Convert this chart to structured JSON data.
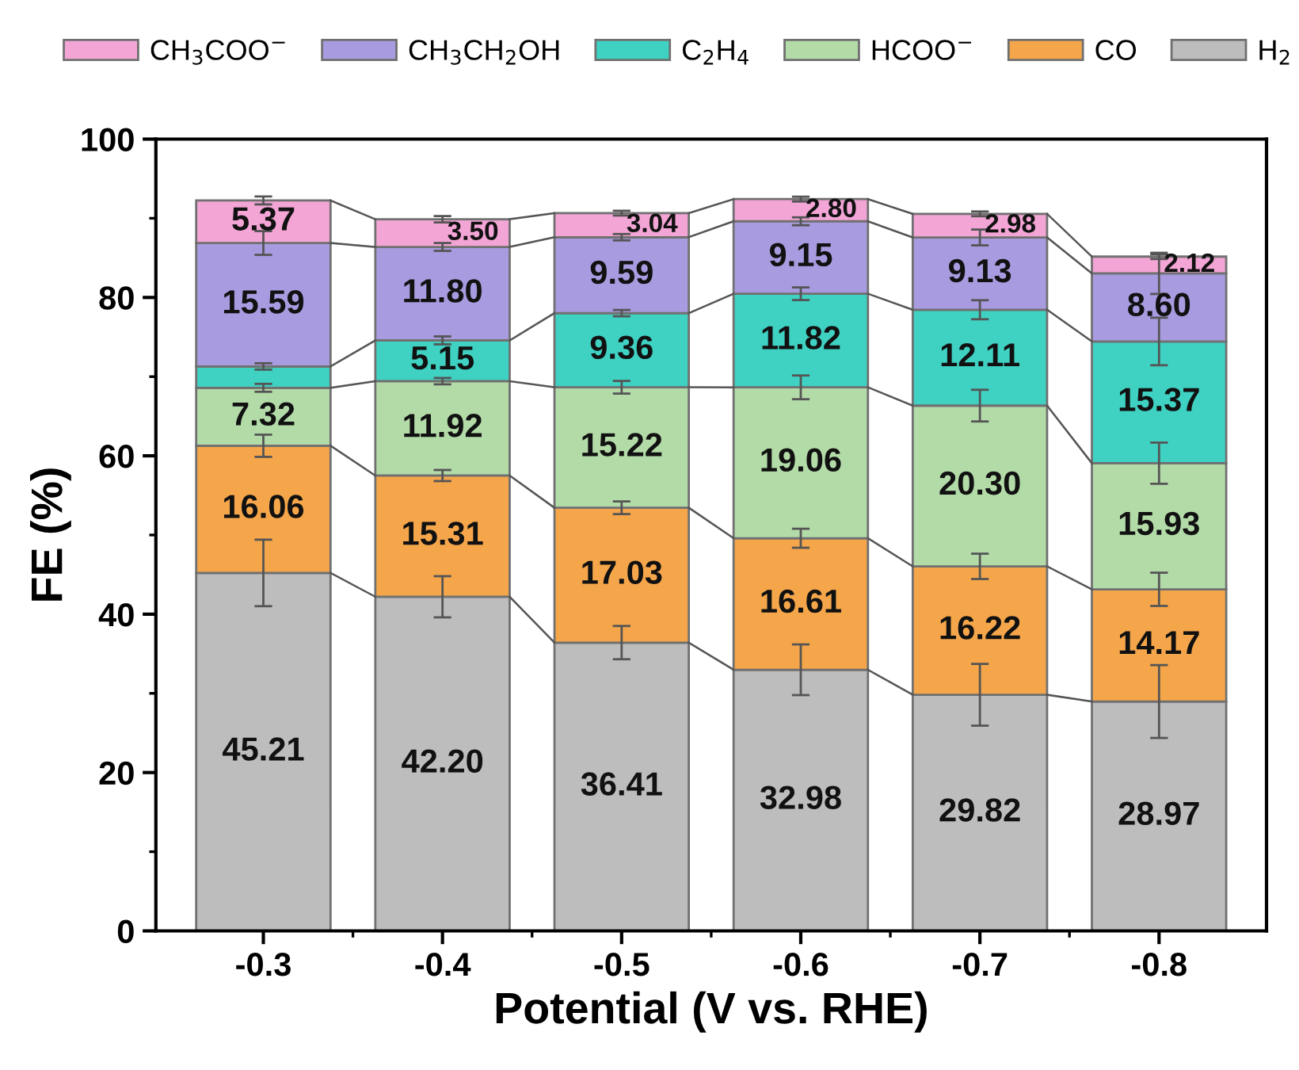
{
  "chart_data": {
    "type": "bar",
    "stacked": true,
    "xlabel": "Potential (V vs. RHE)",
    "ylabel": "FE (%)",
    "categories": [
      "-0.3",
      "-0.4",
      "-0.5",
      "-0.6",
      "-0.7",
      "-0.8"
    ],
    "ylim": [
      0,
      100
    ],
    "yticks": [
      0,
      20,
      40,
      60,
      80,
      100
    ],
    "grid": false,
    "legend": "top",
    "series": [
      {
        "name": "H$_{2}$",
        "color": "#bdbdbd",
        "values": [
          45.21,
          42.2,
          36.41,
          32.98,
          29.82,
          28.97
        ],
        "errors": [
          4.2,
          2.6,
          2.1,
          3.2,
          3.9,
          4.6
        ],
        "value_labels": [
          "45.21",
          "42.20",
          "36.41",
          "32.98",
          "29.82",
          "28.97"
        ]
      },
      {
        "name": "CO",
        "color": "#f5a64a",
        "values": [
          16.06,
          15.31,
          17.03,
          16.61,
          16.22,
          14.17
        ],
        "errors": [
          1.4,
          0.7,
          0.8,
          1.2,
          1.6,
          2.1
        ],
        "value_labels": [
          "16.06",
          "15.31",
          "17.03",
          "16.61",
          "16.22",
          "14.17"
        ]
      },
      {
        "name": "HCOO$^{−}$",
        "color": "#b3dba8",
        "values": [
          7.32,
          11.92,
          15.22,
          19.06,
          20.3,
          15.93
        ],
        "errors": [
          0.5,
          0.4,
          0.8,
          1.5,
          2.0,
          2.6
        ],
        "value_labels": [
          "7.32",
          "11.92",
          "15.22",
          "19.06",
          "20.30",
          "15.93"
        ]
      },
      {
        "name": "C$_{2}$H$_{4}$",
        "color": "#3fd1c2",
        "values": [
          2.7,
          5.15,
          9.36,
          11.82,
          12.11,
          15.37
        ],
        "errors": [
          0.4,
          0.5,
          0.4,
          0.8,
          1.2,
          3.0
        ],
        "value_labels": [
          null,
          "5.15",
          "9.36",
          "11.82",
          "12.11",
          "15.37"
        ]
      },
      {
        "name": "CH$_{3}$CH$_{2}$OH",
        "color": "#a99be0",
        "values": [
          15.59,
          11.8,
          9.59,
          9.15,
          9.13,
          8.6
        ],
        "errors": [
          1.5,
          0.5,
          0.4,
          0.5,
          1.0,
          2.6
        ],
        "value_labels": [
          "15.59",
          "11.80",
          "9.59",
          "9.15",
          "9.13",
          "8.60"
        ]
      },
      {
        "name": "CH$_{3}$COO$^{−}$",
        "color": "#f3a5d6",
        "values": [
          5.37,
          3.5,
          3.04,
          2.8,
          2.98,
          2.12
        ],
        "errors": [
          0.5,
          0.4,
          0.3,
          0.3,
          0.3,
          0.3
        ],
        "value_labels": [
          "5.37",
          "3.50",
          "3.04",
          "2.80",
          "2.98",
          "2.12"
        ]
      }
    ]
  }
}
